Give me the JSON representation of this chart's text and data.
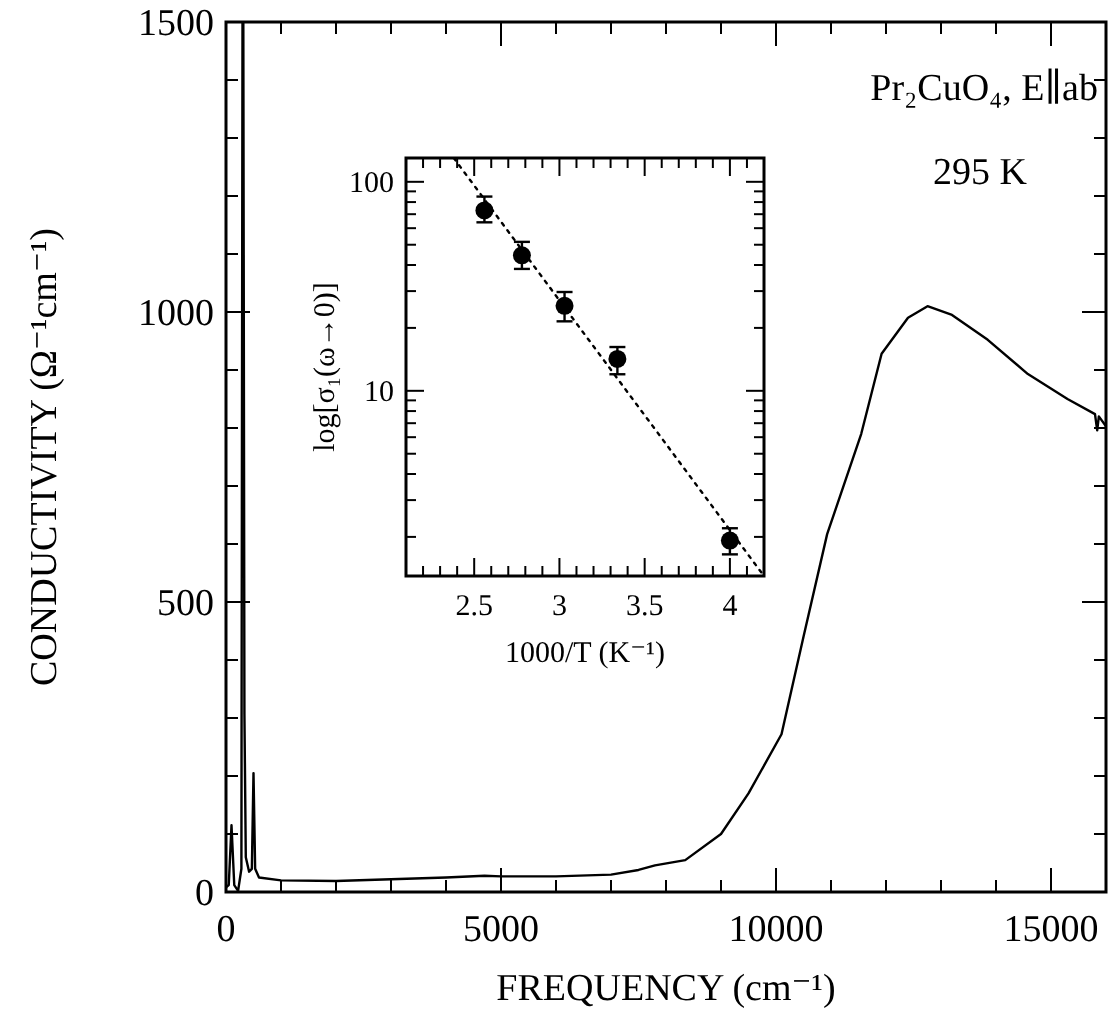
{
  "chart_data": [
    {
      "type": "line",
      "xlabel": "FREQUENCY (cm⁻¹)",
      "ylabel": "CONDUCTIVITY (Ω⁻¹cm⁻¹)",
      "annotations": [
        "Pr₂CuO₄, E∥ab",
        "295 K"
      ],
      "x": [
        0,
        50,
        100,
        150,
        220,
        280,
        300,
        315,
        335,
        360,
        420,
        470,
        500,
        530,
        600,
        1000,
        2000,
        3000,
        4000,
        4700,
        5000,
        6000,
        7000,
        7500,
        7800,
        8350,
        9000,
        9500,
        10100,
        10500,
        10930,
        11550,
        11920,
        12400,
        12755,
        13200,
        13850,
        14580,
        15300,
        15800,
        15840,
        15870,
        16000
      ],
      "series": [
        {
          "color": "#000000",
          "line_style": "solid",
          "marker": "none",
          "values": [
            8,
            12,
            115,
            12,
            2,
            40,
            1500,
            1500,
            307,
            60,
            35,
            40,
            205,
            40,
            25,
            20,
            19,
            22,
            25,
            28,
            27,
            27,
            30,
            38,
            46,
            55,
            100,
            170,
            272,
            440,
            617,
            790,
            928,
            990,
            1010,
            995,
            952,
            893,
            850,
            824,
            796,
            820,
            803
          ]
        }
      ],
      "xlim": [
        0,
        16000
      ],
      "xticks": [
        0,
        {
          "value": 1000,
          "label": null
        },
        {
          "value": 2000,
          "label": null
        },
        {
          "value": 3000,
          "label": null
        },
        {
          "value": 4000,
          "label": null
        },
        5000,
        {
          "value": 6000,
          "label": null
        },
        {
          "value": 7000,
          "label": null
        },
        {
          "value": 8000,
          "label": null
        },
        {
          "value": 9000,
          "label": null
        },
        10000,
        {
          "value": 11000,
          "label": null
        },
        {
          "value": 12000,
          "label": null
        },
        {
          "value": 13000,
          "label": null
        },
        {
          "value": 14000,
          "label": null
        },
        15000,
        {
          "value": 16000,
          "label": null
        }
      ],
      "ylim": [
        0,
        1500
      ],
      "yticks": [
        0,
        {
          "value": 100,
          "label": null
        },
        {
          "value": 200,
          "label": null
        },
        {
          "value": 300,
          "label": null
        },
        {
          "value": 400,
          "label": null
        },
        500,
        {
          "value": 600,
          "label": null
        },
        {
          "value": 700,
          "label": null
        },
        {
          "value": 800,
          "label": null
        },
        {
          "value": 900,
          "label": null
        },
        1000,
        {
          "value": 1100,
          "label": null
        },
        {
          "value": 1200,
          "label": null
        },
        {
          "value": 1300,
          "label": null
        },
        {
          "value": 1400,
          "label": null
        },
        1500
      ]
    },
    {
      "type": "scatter",
      "xlabel": "1000/T (K⁻¹)",
      "ylabel": "log[σ₁(ω→0)]",
      "log": "y",
      "x": [
        2.56,
        2.78,
        3.03,
        3.34,
        4.0
      ],
      "series": [
        {
          "color": "#000000",
          "marker": "circle",
          "values": [
            73,
            44.5,
            25.5,
            14.2,
            1.92
          ],
          "errors": [
            [
              64,
              85
            ],
            [
              38.3,
              51.6
            ],
            [
              21.5,
              29.7
            ],
            [
              12,
              16.2
            ],
            [
              1.65,
              2.2
            ]
          ]
        },
        {
          "type": "line",
          "color": "#000000",
          "line_style": "dotted",
          "marker": "none",
          "x": [
            2.38,
            4.2
          ],
          "values": [
            130,
            1.3
          ]
        }
      ],
      "xlim": [
        2.1,
        4.2
      ],
      "xticks": [
        {
          "value": 2.2,
          "label": null
        },
        {
          "value": 2.3,
          "label": null
        },
        {
          "value": 2.4,
          "label": null
        },
        2.5,
        {
          "value": 2.6,
          "label": null
        },
        {
          "value": 2.7,
          "label": null
        },
        {
          "value": 2.8,
          "label": null
        },
        {
          "value": 2.9,
          "label": null
        },
        3,
        {
          "value": 3.1,
          "label": null
        },
        {
          "value": 3.2,
          "label": null
        },
        {
          "value": 3.3,
          "label": null
        },
        {
          "value": 3.4,
          "label": null
        },
        3.5,
        {
          "value": 3.6,
          "label": null
        },
        {
          "value": 3.7,
          "label": null
        },
        {
          "value": 3.8,
          "label": null
        },
        {
          "value": 3.9,
          "label": null
        },
        4,
        {
          "value": 4.1,
          "label": null
        }
      ],
      "ylim": [
        1.3,
        130
      ],
      "yticks": [
        {
          "value": 2,
          "label": null
        },
        {
          "value": 3,
          "label": null
        },
        {
          "value": 4,
          "label": null
        },
        {
          "value": 5,
          "label": null
        },
        {
          "value": 6,
          "label": null
        },
        {
          "value": 7,
          "label": null
        },
        {
          "value": 8,
          "label": null
        },
        {
          "value": 9,
          "label": null
        },
        10,
        {
          "value": 20,
          "label": null
        },
        {
          "value": 30,
          "label": null
        },
        {
          "value": 40,
          "label": null
        },
        {
          "value": 50,
          "label": null
        },
        {
          "value": 60,
          "label": null
        },
        {
          "value": 70,
          "label": null
        },
        {
          "value": 80,
          "label": null
        },
        {
          "value": 90,
          "label": null
        },
        100
      ]
    }
  ]
}
